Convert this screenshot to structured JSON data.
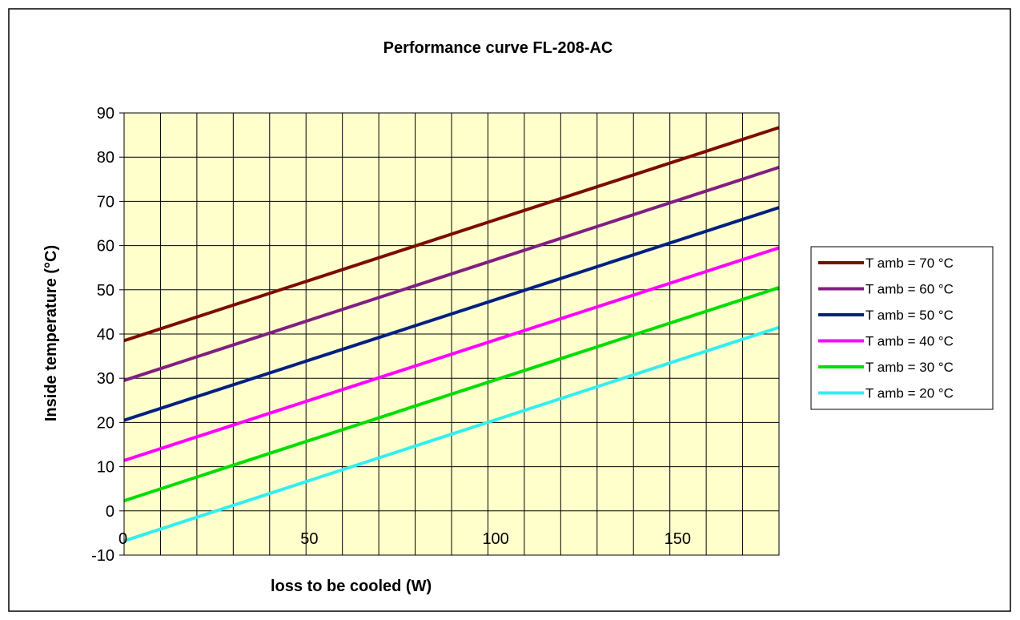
{
  "chart_data": {
    "type": "line",
    "title": "Performance curve FL-208-AC",
    "xlabel": "loss to be cooled (W)",
    "ylabel": "Inside temperature (°C)",
    "xlim": [
      0,
      180
    ],
    "ylim": [
      -10,
      90
    ],
    "xticks": [
      0,
      50,
      100,
      150
    ],
    "yticks": [
      -10,
      0,
      10,
      20,
      30,
      40,
      50,
      60,
      70,
      80,
      90
    ],
    "x_minor_step": 10,
    "grid": true,
    "plot_background": "#ffffcc",
    "legend_position": "right",
    "series": [
      {
        "name": "T amb = 70 °C",
        "color": "#7b0c00",
        "x": [
          0,
          180
        ],
        "y": [
          38.5,
          86.7
        ]
      },
      {
        "name": "T amb = 60 °C",
        "color": "#7f1f7f",
        "x": [
          0,
          180
        ],
        "y": [
          29.5,
          77.7
        ]
      },
      {
        "name": "T amb = 50 °C",
        "color": "#002080",
        "x": [
          0,
          180
        ],
        "y": [
          20.5,
          68.6
        ]
      },
      {
        "name": "T amb = 40 °C",
        "color": "#ff00ff",
        "x": [
          0,
          180
        ],
        "y": [
          11.4,
          59.5
        ]
      },
      {
        "name": "T amb = 30 °C",
        "color": "#00dd00",
        "x": [
          0,
          180
        ],
        "y": [
          2.3,
          50.5
        ]
      },
      {
        "name": "T amb = 20 °C",
        "color": "#33eeee",
        "x": [
          0,
          180
        ],
        "y": [
          -6.8,
          41.5
        ]
      }
    ]
  }
}
